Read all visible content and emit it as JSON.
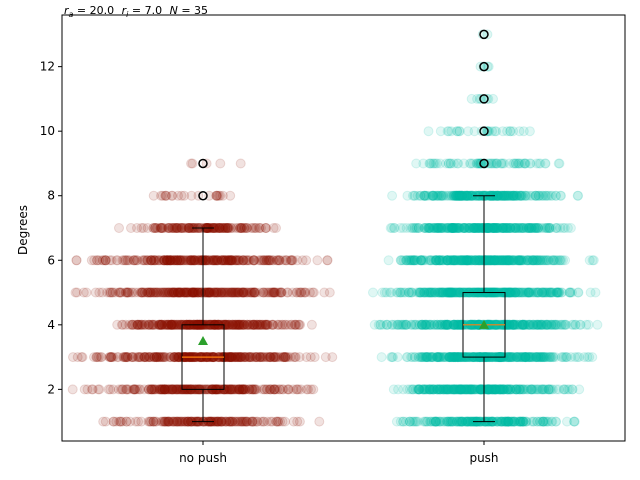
{
  "chart_data": {
    "type": "box",
    "title": "r_a = 20.0  r_i = 7.0  N = 35",
    "title_parts": [
      {
        "sym": "r",
        "sub": "a",
        "val": " = 20.0 "
      },
      {
        "sym": "r",
        "sub": "i",
        "val": " = 7.0 "
      },
      {
        "sym": "N",
        "sub": "",
        "val": " = 35"
      }
    ],
    "xlabel": "",
    "ylabel": "Degrees",
    "ylim": [
      0.4,
      13.6
    ],
    "yticks": [
      2,
      4,
      6,
      8,
      10,
      12
    ],
    "categories": [
      "no push",
      "push"
    ],
    "grid": false,
    "boxes": [
      {
        "name": "no push",
        "color": "#8b1400",
        "q1": 2,
        "median": 3,
        "q3": 4,
        "mean": 3.5,
        "whisker_low": 1,
        "whisker_high": 7,
        "fliers": [
          8,
          9
        ],
        "strips": [
          {
            "y": 1,
            "spread": 0.52,
            "n": 180
          },
          {
            "y": 2,
            "spread": 0.55,
            "n": 260
          },
          {
            "y": 3,
            "spread": 0.6,
            "n": 320
          },
          {
            "y": 4,
            "spread": 0.52,
            "n": 300
          },
          {
            "y": 5,
            "spread": 0.6,
            "n": 280
          },
          {
            "y": 6,
            "spread": 0.6,
            "n": 260
          },
          {
            "y": 7,
            "spread": 0.4,
            "n": 160
          },
          {
            "y": 8,
            "spread": 0.3,
            "n": 22
          },
          {
            "y": 9,
            "spread": 0.2,
            "n": 5
          }
        ]
      },
      {
        "name": "push",
        "color": "#00bfa8",
        "q1": 3,
        "median": 4,
        "q3": 5,
        "mean": 4.0,
        "whisker_low": 1,
        "whisker_high": 8,
        "fliers": [
          9,
          10,
          11,
          12,
          13
        ],
        "strips": [
          {
            "y": 1,
            "spread": 0.45,
            "n": 220
          },
          {
            "y": 2,
            "spread": 0.45,
            "n": 300
          },
          {
            "y": 3,
            "spread": 0.5,
            "n": 340
          },
          {
            "y": 4,
            "spread": 0.55,
            "n": 340
          },
          {
            "y": 5,
            "spread": 0.55,
            "n": 340
          },
          {
            "y": 6,
            "spread": 0.5,
            "n": 320
          },
          {
            "y": 7,
            "spread": 0.48,
            "n": 300
          },
          {
            "y": 8,
            "spread": 0.42,
            "n": 240
          },
          {
            "y": 9,
            "spread": 0.4,
            "n": 70
          },
          {
            "y": 10,
            "spread": 0.3,
            "n": 28
          },
          {
            "y": 11,
            "spread": 0.1,
            "n": 8
          },
          {
            "y": 12,
            "spread": 0.08,
            "n": 5
          },
          {
            "y": 13,
            "spread": 0.02,
            "n": 2
          }
        ]
      }
    ]
  }
}
